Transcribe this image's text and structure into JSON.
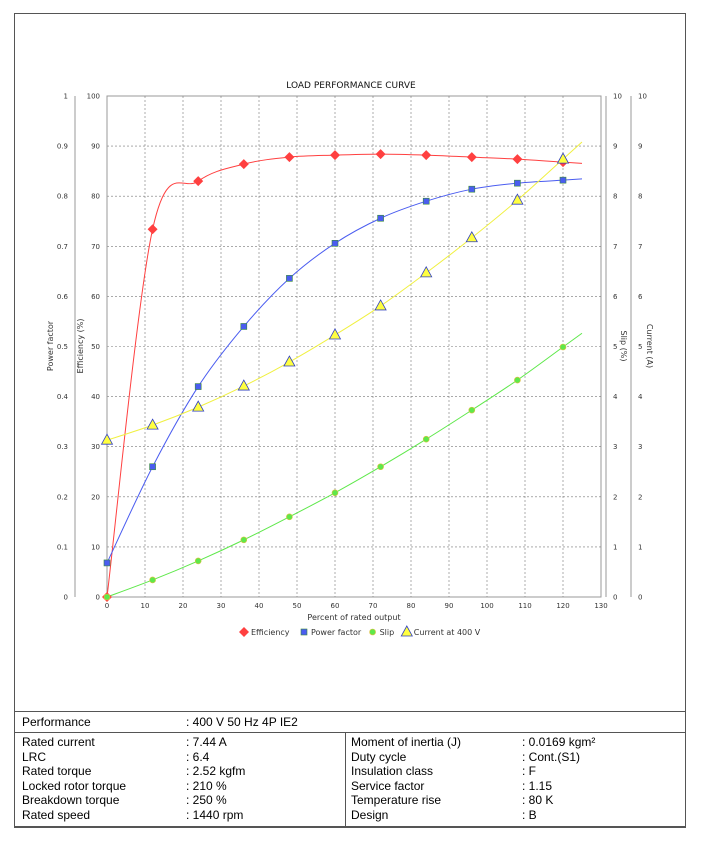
{
  "chart_data": {
    "type": "line",
    "title": "LOAD PERFORMANCE CURVE",
    "xlabel": "Percent of rated output",
    "xlim": [
      0,
      130
    ],
    "xticks": [
      0,
      10,
      20,
      30,
      40,
      50,
      60,
      70,
      80,
      90,
      100,
      110,
      120,
      130
    ],
    "grid": true,
    "legend_placement": "bottom",
    "axes": {
      "power_factor": {
        "label": "Power factor",
        "lim": [
          0,
          1
        ],
        "ticks": [
          "0",
          "0.1",
          "0.2",
          "0.3",
          "0.4",
          "0.5",
          "0.6",
          "0.7",
          "0.8",
          "0.9",
          "1"
        ]
      },
      "efficiency": {
        "label": "Efficiency (%)",
        "lim": [
          0,
          100
        ],
        "ticks": [
          "0",
          "10",
          "20",
          "30",
          "40",
          "50",
          "60",
          "70",
          "80",
          "90",
          "100"
        ]
      },
      "slip": {
        "label": "Slip (%)",
        "lim": [
          0,
          10
        ],
        "ticks": [
          "0",
          "1",
          "2",
          "3",
          "4",
          "5",
          "6",
          "7",
          "8",
          "9",
          "10"
        ]
      },
      "current": {
        "label": "Current (A)",
        "lim": [
          0,
          10
        ],
        "ticks": [
          "0",
          "1",
          "2",
          "3",
          "4",
          "5",
          "6",
          "7",
          "8",
          "9",
          "10"
        ]
      }
    },
    "x": [
      0,
      12,
      24,
      36,
      48,
      60,
      72,
      84,
      96,
      108,
      120
    ],
    "series": [
      {
        "name": "Efficiency",
        "axis": "efficiency",
        "color": "#ff4040",
        "marker": "diamond",
        "values": [
          0,
          73.4,
          83,
          86.4,
          87.8,
          88.2,
          88.4,
          88.2,
          87.8,
          87.4,
          86.8
        ]
      },
      {
        "name": "Power factor",
        "axis": "power_factor",
        "color": "#4a5cf0",
        "marker": "square",
        "values": [
          0.068,
          0.26,
          0.42,
          0.54,
          0.636,
          0.706,
          0.756,
          0.79,
          0.814,
          0.826,
          0.832
        ]
      },
      {
        "name": "Slip",
        "axis": "slip",
        "color": "#5ee84a",
        "marker": "circle",
        "values": [
          0,
          0.34,
          0.72,
          1.14,
          1.6,
          2.08,
          2.6,
          3.15,
          3.73,
          4.33,
          4.99
        ]
      },
      {
        "name": "Current at 400 V",
        "axis": "current",
        "color": "#ffff40",
        "marker": "triangle",
        "values": [
          3.13,
          3.43,
          3.79,
          4.21,
          4.69,
          5.23,
          5.81,
          6.47,
          7.17,
          7.92,
          8.74
        ]
      }
    ]
  },
  "table": {
    "performance": {
      "label": "Performance",
      "value": ": 400 V 50 Hz 4P IE2"
    },
    "left": [
      {
        "label": "Rated current",
        "value": ": 7.44 A"
      },
      {
        "label": "LRC",
        "value": ": 6.4"
      },
      {
        "label": "Rated torque",
        "value": ": 2.52 kgfm"
      },
      {
        "label": "Locked rotor torque",
        "value": ": 210 %"
      },
      {
        "label": "Breakdown torque",
        "value": ": 250 %"
      },
      {
        "label": "Rated speed",
        "value": ": 1440 rpm"
      }
    ],
    "right": [
      {
        "label": "Moment of inertia (J)",
        "value": ": 0.0169 kgm²"
      },
      {
        "label": "Duty cycle",
        "value": ": Cont.(S1)"
      },
      {
        "label": "Insulation class",
        "value": ": F"
      },
      {
        "label": "Service factor",
        "value": ": 1.15"
      },
      {
        "label": "Temperature rise",
        "value": ": 80 K"
      },
      {
        "label": "Design",
        "value": ": B"
      }
    ]
  }
}
